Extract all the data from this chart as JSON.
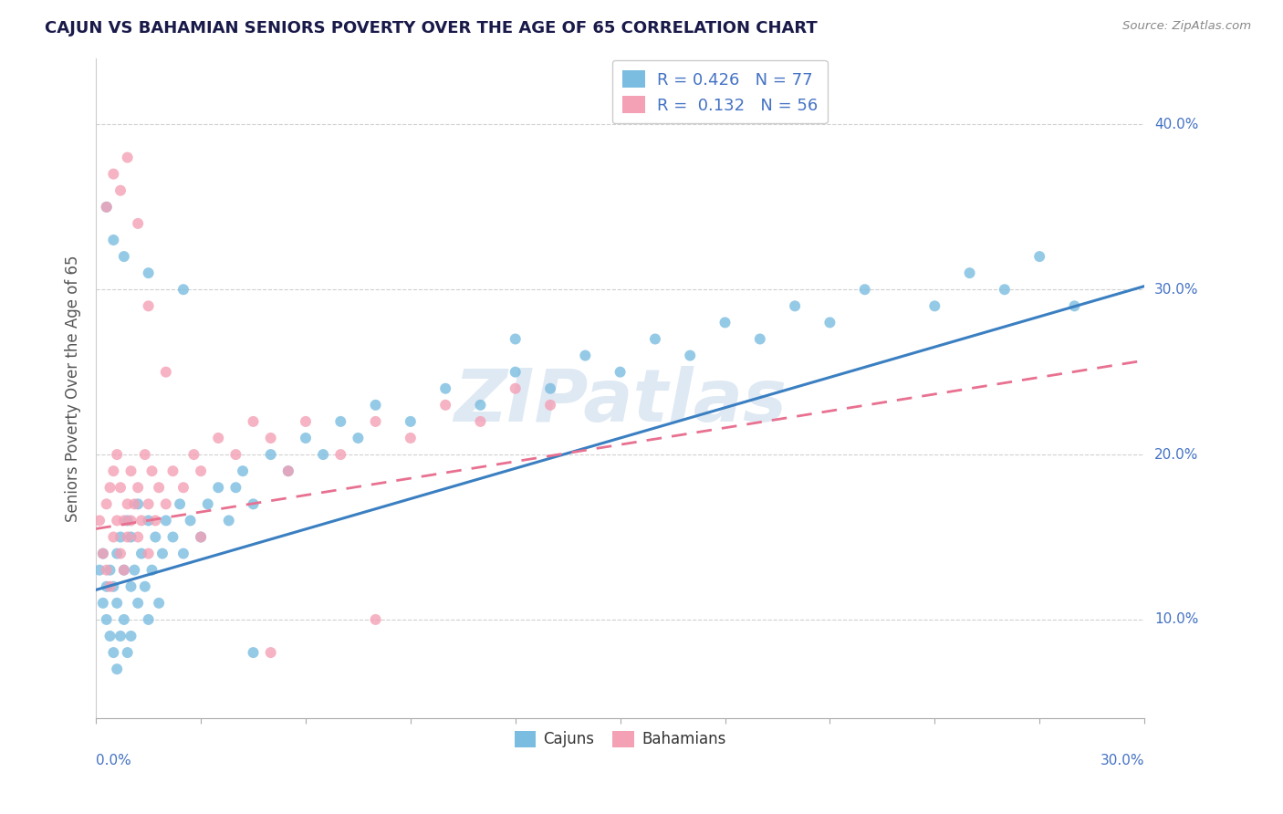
{
  "title": "CAJUN VS BAHAMIAN SENIORS POVERTY OVER THE AGE OF 65 CORRELATION CHART",
  "source_text": "Source: ZipAtlas.com",
  "ylabel": "Seniors Poverty Over the Age of 65",
  "cajun_R": "0.426",
  "cajun_N": "77",
  "bahamian_R": "0.132",
  "bahamian_N": "56",
  "cajun_color": "#7bbde0",
  "bahamian_color": "#f4a0b5",
  "cajun_line_color": "#3a7fc1",
  "bahamian_line_color": "#e87090",
  "watermark": "ZIPatlas",
  "background_color": "#ffffff",
  "xlim": [
    0.0,
    0.3
  ],
  "ylim": [
    0.04,
    0.44
  ],
  "ytick_values": [
    0.1,
    0.2,
    0.3,
    0.4
  ],
  "ytick_labels": [
    "10.0%",
    "20.0%",
    "30.0%",
    "40.0%"
  ],
  "cajun_line_x0": 0.0,
  "cajun_line_y0": 0.118,
  "cajun_line_x1": 0.3,
  "cajun_line_y1": 0.302,
  "bahamian_line_x0": 0.0,
  "bahamian_line_y0": 0.155,
  "bahamian_line_x1": 0.3,
  "bahamian_line_y1": 0.257,
  "cajun_x": [
    0.001,
    0.002,
    0.002,
    0.003,
    0.003,
    0.004,
    0.004,
    0.005,
    0.005,
    0.006,
    0.006,
    0.006,
    0.007,
    0.007,
    0.008,
    0.008,
    0.009,
    0.009,
    0.01,
    0.01,
    0.01,
    0.011,
    0.012,
    0.012,
    0.013,
    0.014,
    0.015,
    0.015,
    0.016,
    0.017,
    0.018,
    0.019,
    0.02,
    0.022,
    0.024,
    0.025,
    0.027,
    0.03,
    0.032,
    0.035,
    0.038,
    0.04,
    0.042,
    0.045,
    0.05,
    0.055,
    0.06,
    0.065,
    0.07,
    0.075,
    0.08,
    0.09,
    0.1,
    0.11,
    0.12,
    0.13,
    0.14,
    0.15,
    0.16,
    0.17,
    0.18,
    0.19,
    0.2,
    0.21,
    0.22,
    0.24,
    0.25,
    0.26,
    0.27,
    0.28,
    0.003,
    0.005,
    0.008,
    0.015,
    0.025,
    0.045,
    0.12
  ],
  "cajun_y": [
    0.13,
    0.11,
    0.14,
    0.1,
    0.12,
    0.09,
    0.13,
    0.08,
    0.12,
    0.07,
    0.11,
    0.14,
    0.09,
    0.15,
    0.1,
    0.13,
    0.08,
    0.16,
    0.09,
    0.12,
    0.15,
    0.13,
    0.11,
    0.17,
    0.14,
    0.12,
    0.1,
    0.16,
    0.13,
    0.15,
    0.11,
    0.14,
    0.16,
    0.15,
    0.17,
    0.14,
    0.16,
    0.15,
    0.17,
    0.18,
    0.16,
    0.18,
    0.19,
    0.17,
    0.2,
    0.19,
    0.21,
    0.2,
    0.22,
    0.21,
    0.23,
    0.22,
    0.24,
    0.23,
    0.25,
    0.24,
    0.26,
    0.25,
    0.27,
    0.26,
    0.28,
    0.27,
    0.29,
    0.28,
    0.3,
    0.29,
    0.31,
    0.3,
    0.32,
    0.29,
    0.35,
    0.33,
    0.32,
    0.31,
    0.3,
    0.08,
    0.27
  ],
  "bahamian_x": [
    0.001,
    0.002,
    0.003,
    0.003,
    0.004,
    0.004,
    0.005,
    0.005,
    0.006,
    0.006,
    0.007,
    0.007,
    0.008,
    0.008,
    0.009,
    0.009,
    0.01,
    0.01,
    0.011,
    0.012,
    0.012,
    0.013,
    0.014,
    0.015,
    0.015,
    0.016,
    0.017,
    0.018,
    0.02,
    0.022,
    0.025,
    0.028,
    0.03,
    0.035,
    0.04,
    0.045,
    0.05,
    0.055,
    0.06,
    0.07,
    0.08,
    0.09,
    0.1,
    0.11,
    0.12,
    0.13,
    0.003,
    0.005,
    0.007,
    0.009,
    0.012,
    0.015,
    0.02,
    0.03,
    0.05,
    0.08
  ],
  "bahamian_y": [
    0.16,
    0.14,
    0.17,
    0.13,
    0.18,
    0.12,
    0.19,
    0.15,
    0.16,
    0.2,
    0.14,
    0.18,
    0.16,
    0.13,
    0.17,
    0.15,
    0.16,
    0.19,
    0.17,
    0.15,
    0.18,
    0.16,
    0.2,
    0.17,
    0.14,
    0.19,
    0.16,
    0.18,
    0.17,
    0.19,
    0.18,
    0.2,
    0.19,
    0.21,
    0.2,
    0.22,
    0.21,
    0.19,
    0.22,
    0.2,
    0.22,
    0.21,
    0.23,
    0.22,
    0.24,
    0.23,
    0.35,
    0.37,
    0.36,
    0.38,
    0.34,
    0.29,
    0.25,
    0.15,
    0.08,
    0.1
  ]
}
